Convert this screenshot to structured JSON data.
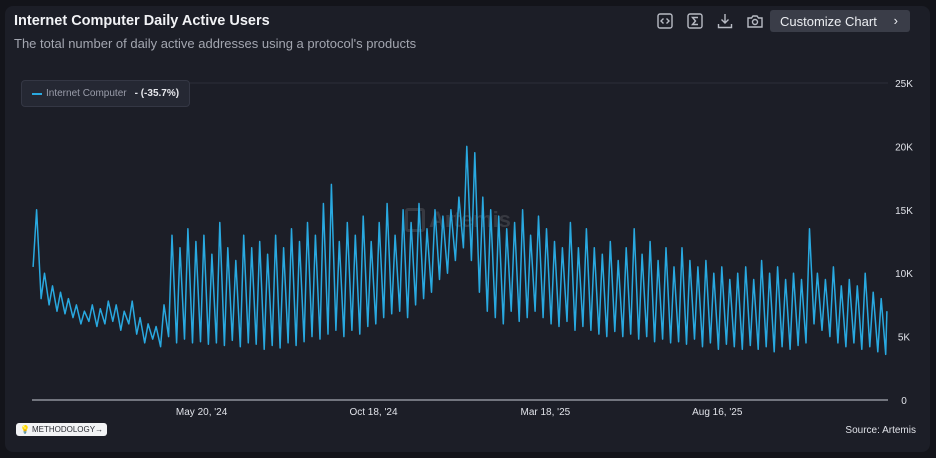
{
  "header": {
    "title": "Internet Computer Daily Active Users",
    "subtitle": "The total number of daily active addresses using a protocol's products"
  },
  "toolbar": {
    "icons": [
      "embed-icon",
      "sigma-icon",
      "download-icon",
      "camera-icon"
    ],
    "customize_label": "Customize Chart",
    "customize_chevron": "›"
  },
  "footer": {
    "methodology_label": "METHODOLOGY",
    "methodology_arrow": "→",
    "source": "Source: Artemis"
  },
  "watermark": "Artemis",
  "colors": {
    "series": "#29a9e0",
    "background": "#1c1e27"
  },
  "chart_data": {
    "type": "line",
    "title": "Internet Computer Daily Active Users",
    "legend": {
      "position": "top-left",
      "entries": [
        {
          "name": "Internet Computer",
          "change": "- (-35.7%)"
        }
      ]
    },
    "y_ticks": [
      "0",
      "5K",
      "10K",
      "15K",
      "20K",
      "25K"
    ],
    "ylim": [
      0,
      25000
    ],
    "xlim": [
      "2023-12-23",
      "2026-01-13"
    ],
    "x_ticks": [
      {
        "date": "2024-05-20",
        "label": "May 20, '24"
      },
      {
        "date": "2024-10-18",
        "label": "Oct 18, '24"
      },
      {
        "date": "2025-03-18",
        "label": "Mar 18, '25"
      },
      {
        "date": "2025-08-16",
        "label": "Aug 16, '25"
      }
    ],
    "grid": false,
    "series": [
      {
        "name": "Internet Computer",
        "points": [
          [
            "2023-12-24",
            10500
          ],
          [
            "2023-12-27",
            15000
          ],
          [
            "2023-12-31",
            8000
          ],
          [
            "2024-01-03",
            10000
          ],
          [
            "2024-01-07",
            7500
          ],
          [
            "2024-01-10",
            9000
          ],
          [
            "2024-01-14",
            7000
          ],
          [
            "2024-01-17",
            8500
          ],
          [
            "2024-01-21",
            6800
          ],
          [
            "2024-01-24",
            8000
          ],
          [
            "2024-01-28",
            6500
          ],
          [
            "2024-01-31",
            7500
          ],
          [
            "2024-02-04",
            6000
          ],
          [
            "2024-02-07",
            7000
          ],
          [
            "2024-02-11",
            6200
          ],
          [
            "2024-02-14",
            7500
          ],
          [
            "2024-02-18",
            5800
          ],
          [
            "2024-02-21",
            7200
          ],
          [
            "2024-02-25",
            6000
          ],
          [
            "2024-02-28",
            7800
          ],
          [
            "2024-03-03",
            6200
          ],
          [
            "2024-03-06",
            7500
          ],
          [
            "2024-03-10",
            5500
          ],
          [
            "2024-03-13",
            7000
          ],
          [
            "2024-03-17",
            6000
          ],
          [
            "2024-03-20",
            7800
          ],
          [
            "2024-03-24",
            5200
          ],
          [
            "2024-03-27",
            6500
          ],
          [
            "2024-03-31",
            4500
          ],
          [
            "2024-04-03",
            6000
          ],
          [
            "2024-04-07",
            4800
          ],
          [
            "2024-04-10",
            5800
          ],
          [
            "2024-04-14",
            4200
          ],
          [
            "2024-04-17",
            7500
          ],
          [
            "2024-04-21",
            5000
          ],
          [
            "2024-04-24",
            13000
          ],
          [
            "2024-04-28",
            4500
          ],
          [
            "2024-05-01",
            12000
          ],
          [
            "2024-05-05",
            4800
          ],
          [
            "2024-05-08",
            13500
          ],
          [
            "2024-05-12",
            4500
          ],
          [
            "2024-05-15",
            12500
          ],
          [
            "2024-05-19",
            4600
          ],
          [
            "2024-05-22",
            13000
          ],
          [
            "2024-05-26",
            4400
          ],
          [
            "2024-05-29",
            11500
          ],
          [
            "2024-06-02",
            4500
          ],
          [
            "2024-06-05",
            14000
          ],
          [
            "2024-06-09",
            4300
          ],
          [
            "2024-06-12",
            12000
          ],
          [
            "2024-06-16",
            4700
          ],
          [
            "2024-06-19",
            11000
          ],
          [
            "2024-06-23",
            4200
          ],
          [
            "2024-06-26",
            13000
          ],
          [
            "2024-06-30",
            4500
          ],
          [
            "2024-07-03",
            12000
          ],
          [
            "2024-07-07",
            4400
          ],
          [
            "2024-07-10",
            12500
          ],
          [
            "2024-07-14",
            4000
          ],
          [
            "2024-07-17",
            11500
          ],
          [
            "2024-07-21",
            4300
          ],
          [
            "2024-07-24",
            13000
          ],
          [
            "2024-07-28",
            4100
          ],
          [
            "2024-07-31",
            12000
          ],
          [
            "2024-08-04",
            4500
          ],
          [
            "2024-08-07",
            13500
          ],
          [
            "2024-08-11",
            4300
          ],
          [
            "2024-08-14",
            12500
          ],
          [
            "2024-08-18",
            4600
          ],
          [
            "2024-08-21",
            14000
          ],
          [
            "2024-08-25",
            5000
          ],
          [
            "2024-08-28",
            13000
          ],
          [
            "2024-09-01",
            4800
          ],
          [
            "2024-09-04",
            15500
          ],
          [
            "2024-09-08",
            5200
          ],
          [
            "2024-09-11",
            17000
          ],
          [
            "2024-09-15",
            5500
          ],
          [
            "2024-09-18",
            12500
          ],
          [
            "2024-09-22",
            5000
          ],
          [
            "2024-09-25",
            14000
          ],
          [
            "2024-09-29",
            5500
          ],
          [
            "2024-10-02",
            13000
          ],
          [
            "2024-10-06",
            5200
          ],
          [
            "2024-10-09",
            14500
          ],
          [
            "2024-10-13",
            5800
          ],
          [
            "2024-10-16",
            12500
          ],
          [
            "2024-10-20",
            6000
          ],
          [
            "2024-10-23",
            14000
          ],
          [
            "2024-10-27",
            6500
          ],
          [
            "2024-10-30",
            15500
          ],
          [
            "2024-11-03",
            6800
          ],
          [
            "2024-11-06",
            13000
          ],
          [
            "2024-11-10",
            7000
          ],
          [
            "2024-11-13",
            15000
          ],
          [
            "2024-11-17",
            6500
          ],
          [
            "2024-11-20",
            14000
          ],
          [
            "2024-11-24",
            7500
          ],
          [
            "2024-11-27",
            15500
          ],
          [
            "2024-12-01",
            8000
          ],
          [
            "2024-12-04",
            13500
          ],
          [
            "2024-12-08",
            8500
          ],
          [
            "2024-12-11",
            15000
          ],
          [
            "2024-12-15",
            9500
          ],
          [
            "2024-12-18",
            14500
          ],
          [
            "2024-12-22",
            10000
          ],
          [
            "2024-12-25",
            15000
          ],
          [
            "2024-12-29",
            11000
          ],
          [
            "2025-01-01",
            16000
          ],
          [
            "2025-01-05",
            12000
          ],
          [
            "2025-01-08",
            20000
          ],
          [
            "2025-01-12",
            11000
          ],
          [
            "2025-01-15",
            19500
          ],
          [
            "2025-01-19",
            8500
          ],
          [
            "2025-01-22",
            16000
          ],
          [
            "2025-01-26",
            7000
          ],
          [
            "2025-01-29",
            15000
          ],
          [
            "2025-02-02",
            6500
          ],
          [
            "2025-02-05",
            14500
          ],
          [
            "2025-02-09",
            6000
          ],
          [
            "2025-02-12",
            13500
          ],
          [
            "2025-02-16",
            7000
          ],
          [
            "2025-02-19",
            14000
          ],
          [
            "2025-02-23",
            6200
          ],
          [
            "2025-02-26",
            15000
          ],
          [
            "2025-03-02",
            6500
          ],
          [
            "2025-03-05",
            13000
          ],
          [
            "2025-03-09",
            7000
          ],
          [
            "2025-03-12",
            14500
          ],
          [
            "2025-03-16",
            6500
          ],
          [
            "2025-03-19",
            13500
          ],
          [
            "2025-03-23",
            6000
          ],
          [
            "2025-03-26",
            12500
          ],
          [
            "2025-03-30",
            5800
          ],
          [
            "2025-04-02",
            12000
          ],
          [
            "2025-04-06",
            6200
          ],
          [
            "2025-04-09",
            14000
          ],
          [
            "2025-04-13",
            5500
          ],
          [
            "2025-04-16",
            12000
          ],
          [
            "2025-04-20",
            5800
          ],
          [
            "2025-04-23",
            13500
          ],
          [
            "2025-04-27",
            5500
          ],
          [
            "2025-04-30",
            12000
          ],
          [
            "2025-05-04",
            5200
          ],
          [
            "2025-05-07",
            11500
          ],
          [
            "2025-05-11",
            5000
          ],
          [
            "2025-05-14",
            12500
          ],
          [
            "2025-05-18",
            5400
          ],
          [
            "2025-05-21",
            11000
          ],
          [
            "2025-05-25",
            5000
          ],
          [
            "2025-05-28",
            12000
          ],
          [
            "2025-06-01",
            5200
          ],
          [
            "2025-06-04",
            13500
          ],
          [
            "2025-06-08",
            4800
          ],
          [
            "2025-06-11",
            11500
          ],
          [
            "2025-06-15",
            5000
          ],
          [
            "2025-06-18",
            12500
          ],
          [
            "2025-06-22",
            4600
          ],
          [
            "2025-06-25",
            11000
          ],
          [
            "2025-06-29",
            4800
          ],
          [
            "2025-07-02",
            12000
          ],
          [
            "2025-07-06",
            4500
          ],
          [
            "2025-07-09",
            10500
          ],
          [
            "2025-07-13",
            4600
          ],
          [
            "2025-07-16",
            12000
          ],
          [
            "2025-07-20",
            4400
          ],
          [
            "2025-07-23",
            11000
          ],
          [
            "2025-07-27",
            4800
          ],
          [
            "2025-07-30",
            10500
          ],
          [
            "2025-08-03",
            4200
          ],
          [
            "2025-08-06",
            11000
          ],
          [
            "2025-08-10",
            4500
          ],
          [
            "2025-08-13",
            10000
          ],
          [
            "2025-08-17",
            4000
          ],
          [
            "2025-08-20",
            10500
          ],
          [
            "2025-08-24",
            4400
          ],
          [
            "2025-08-27",
            9500
          ],
          [
            "2025-08-31",
            4200
          ],
          [
            "2025-09-03",
            10000
          ],
          [
            "2025-09-07",
            4000
          ],
          [
            "2025-09-10",
            10500
          ],
          [
            "2025-09-14",
            4300
          ],
          [
            "2025-09-17",
            9500
          ],
          [
            "2025-09-21",
            4000
          ],
          [
            "2025-09-24",
            11000
          ],
          [
            "2025-09-28",
            4200
          ],
          [
            "2025-10-01",
            10000
          ],
          [
            "2025-10-05",
            3800
          ],
          [
            "2025-10-08",
            10500
          ],
          [
            "2025-10-12",
            4200
          ],
          [
            "2025-10-15",
            9500
          ],
          [
            "2025-10-19",
            4000
          ],
          [
            "2025-10-22",
            10000
          ],
          [
            "2025-10-26",
            4300
          ],
          [
            "2025-10-29",
            9500
          ],
          [
            "2025-11-02",
            4500
          ],
          [
            "2025-11-05",
            13500
          ],
          [
            "2025-11-09",
            6000
          ],
          [
            "2025-11-12",
            10000
          ],
          [
            "2025-11-16",
            5500
          ],
          [
            "2025-11-19",
            9500
          ],
          [
            "2025-11-23",
            5000
          ],
          [
            "2025-11-26",
            10500
          ],
          [
            "2025-11-30",
            4500
          ],
          [
            "2025-12-03",
            9000
          ],
          [
            "2025-12-07",
            4200
          ],
          [
            "2025-12-10",
            9500
          ],
          [
            "2025-12-14",
            4500
          ],
          [
            "2025-12-17",
            9000
          ],
          [
            "2025-12-21",
            4000
          ],
          [
            "2025-12-24",
            10000
          ],
          [
            "2025-12-28",
            4200
          ],
          [
            "2025-12-31",
            8500
          ],
          [
            "2026-01-04",
            3800
          ],
          [
            "2026-01-07",
            8000
          ],
          [
            "2026-01-11",
            3600
          ],
          [
            "2026-01-12",
            7000
          ]
        ]
      }
    ]
  }
}
